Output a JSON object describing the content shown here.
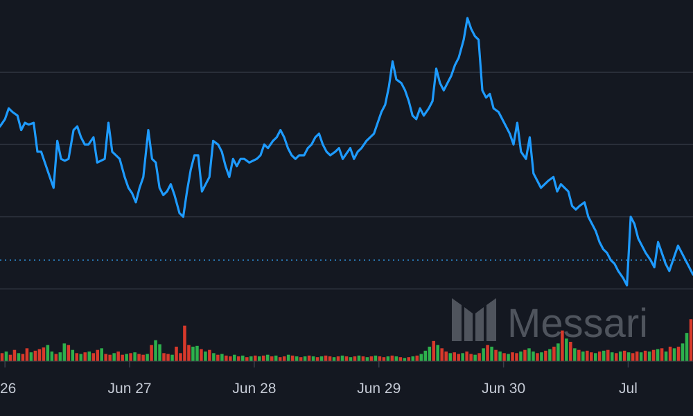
{
  "chart_data": {
    "type": "line",
    "x_ticks": [
      {
        "label": "26",
        "day": 0
      },
      {
        "label": "Jun 27",
        "day": 1
      },
      {
        "label": "Jun 28",
        "day": 2
      },
      {
        "label": "Jun 29",
        "day": 3
      },
      {
        "label": "Jun 30",
        "day": 4
      },
      {
        "label": "Jul",
        "day": 5
      }
    ],
    "xlim": [
      -0.04,
      5.52
    ],
    "ylim": [
      0,
      100
    ],
    "grid": true,
    "reference_line": 28,
    "series": [
      {
        "type": "line",
        "color": "#1e9bff",
        "values": [
          [
            -0.04,
            65
          ],
          [
            0.0,
            67
          ],
          [
            0.03,
            70
          ],
          [
            0.06,
            69
          ],
          [
            0.1,
            68
          ],
          [
            0.13,
            64
          ],
          [
            0.16,
            66
          ],
          [
            0.19,
            65.5
          ],
          [
            0.23,
            66
          ],
          [
            0.26,
            58
          ],
          [
            0.29,
            58
          ],
          [
            0.32,
            55
          ],
          [
            0.35,
            52
          ],
          [
            0.39,
            48
          ],
          [
            0.42,
            61
          ],
          [
            0.45,
            56
          ],
          [
            0.48,
            55.5
          ],
          [
            0.51,
            56
          ],
          [
            0.55,
            64
          ],
          [
            0.58,
            65
          ],
          [
            0.61,
            62
          ],
          [
            0.64,
            60
          ],
          [
            0.67,
            60
          ],
          [
            0.71,
            62
          ],
          [
            0.74,
            55
          ],
          [
            0.77,
            55.5
          ],
          [
            0.8,
            56
          ],
          [
            0.83,
            66
          ],
          [
            0.86,
            58
          ],
          [
            0.89,
            57
          ],
          [
            0.92,
            56
          ],
          [
            0.96,
            51
          ],
          [
            0.99,
            48
          ],
          [
            1.02,
            46.5
          ],
          [
            1.05,
            44
          ],
          [
            1.08,
            48
          ],
          [
            1.11,
            51
          ],
          [
            1.15,
            64
          ],
          [
            1.18,
            56
          ],
          [
            1.21,
            55
          ],
          [
            1.24,
            48
          ],
          [
            1.27,
            46
          ],
          [
            1.3,
            47
          ],
          [
            1.33,
            49
          ],
          [
            1.36,
            46
          ],
          [
            1.4,
            41
          ],
          [
            1.43,
            40
          ],
          [
            1.46,
            47
          ],
          [
            1.49,
            53
          ],
          [
            1.52,
            57
          ],
          [
            1.55,
            57
          ],
          [
            1.58,
            47
          ],
          [
            1.61,
            49
          ],
          [
            1.64,
            51
          ],
          [
            1.67,
            61
          ],
          [
            1.71,
            60
          ],
          [
            1.74,
            58
          ],
          [
            1.77,
            54
          ],
          [
            1.8,
            51
          ],
          [
            1.83,
            56
          ],
          [
            1.86,
            54
          ],
          [
            1.89,
            56
          ],
          [
            1.92,
            56
          ],
          [
            1.96,
            55
          ],
          [
            1.99,
            55.5
          ],
          [
            2.02,
            56
          ],
          [
            2.05,
            57
          ],
          [
            2.08,
            60
          ],
          [
            2.11,
            59
          ],
          [
            2.15,
            61
          ],
          [
            2.18,
            62
          ],
          [
            2.21,
            64
          ],
          [
            2.24,
            62
          ],
          [
            2.27,
            59
          ],
          [
            2.3,
            57
          ],
          [
            2.33,
            56
          ],
          [
            2.36,
            57
          ],
          [
            2.4,
            57
          ],
          [
            2.43,
            59
          ],
          [
            2.46,
            60
          ],
          [
            2.49,
            62
          ],
          [
            2.52,
            63
          ],
          [
            2.55,
            60
          ],
          [
            2.58,
            58
          ],
          [
            2.61,
            57
          ],
          [
            2.65,
            58
          ],
          [
            2.68,
            59
          ],
          [
            2.71,
            56
          ],
          [
            2.74,
            57.5
          ],
          [
            2.77,
            59
          ],
          [
            2.8,
            56
          ],
          [
            2.83,
            58
          ],
          [
            2.86,
            59
          ],
          [
            2.9,
            61
          ],
          [
            2.93,
            62
          ],
          [
            2.96,
            63
          ],
          [
            2.99,
            66
          ],
          [
            3.02,
            69
          ],
          [
            3.05,
            71
          ],
          [
            3.08,
            76
          ],
          [
            3.11,
            83
          ],
          [
            3.14,
            78
          ],
          [
            3.18,
            77
          ],
          [
            3.21,
            75
          ],
          [
            3.24,
            72
          ],
          [
            3.27,
            68
          ],
          [
            3.3,
            67
          ],
          [
            3.33,
            70
          ],
          [
            3.36,
            68
          ],
          [
            3.4,
            70
          ],
          [
            3.43,
            72
          ],
          [
            3.46,
            81
          ],
          [
            3.49,
            77
          ],
          [
            3.52,
            75
          ],
          [
            3.55,
            77
          ],
          [
            3.58,
            79
          ],
          [
            3.61,
            82
          ],
          [
            3.64,
            84
          ],
          [
            3.68,
            89
          ],
          [
            3.71,
            95
          ],
          [
            3.74,
            92
          ],
          [
            3.77,
            90
          ],
          [
            3.8,
            89
          ],
          [
            3.83,
            75
          ],
          [
            3.86,
            73
          ],
          [
            3.89,
            74
          ],
          [
            3.92,
            70
          ],
          [
            3.96,
            69
          ],
          [
            3.99,
            67
          ],
          [
            4.02,
            65
          ],
          [
            4.05,
            63
          ],
          [
            4.08,
            60
          ],
          [
            4.11,
            66
          ],
          [
            4.14,
            58
          ],
          [
            4.18,
            56
          ],
          [
            4.21,
            62
          ],
          [
            4.24,
            52
          ],
          [
            4.27,
            50
          ],
          [
            4.3,
            48
          ],
          [
            4.33,
            49
          ],
          [
            4.36,
            50
          ],
          [
            4.4,
            51
          ],
          [
            4.43,
            47
          ],
          [
            4.46,
            49
          ],
          [
            4.49,
            48
          ],
          [
            4.52,
            47
          ],
          [
            4.55,
            43
          ],
          [
            4.58,
            42
          ],
          [
            4.61,
            43
          ],
          [
            4.65,
            44
          ],
          [
            4.68,
            40
          ],
          [
            4.71,
            38
          ],
          [
            4.74,
            36
          ],
          [
            4.77,
            33
          ],
          [
            4.8,
            31
          ],
          [
            4.83,
            30
          ],
          [
            4.86,
            28
          ],
          [
            4.89,
            27
          ],
          [
            4.92,
            25
          ],
          [
            4.96,
            23
          ],
          [
            4.99,
            21
          ],
          [
            5.02,
            40
          ],
          [
            5.05,
            38
          ],
          [
            5.08,
            34
          ],
          [
            5.11,
            32
          ],
          [
            5.14,
            30
          ],
          [
            5.18,
            28
          ],
          [
            5.21,
            26
          ],
          [
            5.24,
            33
          ],
          [
            5.27,
            30
          ],
          [
            5.3,
            27
          ],
          [
            5.33,
            25
          ],
          [
            5.36,
            28
          ],
          [
            5.4,
            32
          ],
          [
            5.43,
            30
          ],
          [
            5.46,
            28
          ],
          [
            5.49,
            26
          ],
          [
            5.52,
            24
          ]
        ]
      }
    ],
    "volume": {
      "ylim": [
        0,
        60
      ],
      "up_color": "#2db04c",
      "down_color": "#d8392b",
      "bars": [
        [
          10,
          "down"
        ],
        [
          12,
          "up"
        ],
        [
          8,
          "down"
        ],
        [
          14,
          "down"
        ],
        [
          10,
          "up"
        ],
        [
          9,
          "down"
        ],
        [
          16,
          "down"
        ],
        [
          11,
          "up"
        ],
        [
          13,
          "down"
        ],
        [
          15,
          "down"
        ],
        [
          17,
          "down"
        ],
        [
          20,
          "up"
        ],
        [
          12,
          "up"
        ],
        [
          9,
          "down"
        ],
        [
          11,
          "up"
        ],
        [
          22,
          "up"
        ],
        [
          20,
          "down"
        ],
        [
          14,
          "up"
        ],
        [
          10,
          "down"
        ],
        [
          9,
          "up"
        ],
        [
          11,
          "down"
        ],
        [
          12,
          "up"
        ],
        [
          10,
          "down"
        ],
        [
          14,
          "down"
        ],
        [
          16,
          "up"
        ],
        [
          9,
          "down"
        ],
        [
          8,
          "down"
        ],
        [
          10,
          "up"
        ],
        [
          12,
          "down"
        ],
        [
          8,
          "down"
        ],
        [
          9,
          "up"
        ],
        [
          10,
          "down"
        ],
        [
          11,
          "up"
        ],
        [
          9,
          "down"
        ],
        [
          8,
          "down"
        ],
        [
          9,
          "up"
        ],
        [
          20,
          "down"
        ],
        [
          26,
          "up"
        ],
        [
          21,
          "up"
        ],
        [
          10,
          "down"
        ],
        [
          9,
          "down"
        ],
        [
          8,
          "up"
        ],
        [
          18,
          "down"
        ],
        [
          10,
          "down"
        ],
        [
          44,
          "down"
        ],
        [
          20,
          "down"
        ],
        [
          18,
          "up"
        ],
        [
          19,
          "up"
        ],
        [
          15,
          "down"
        ],
        [
          12,
          "up"
        ],
        [
          14,
          "down"
        ],
        [
          10,
          "up"
        ],
        [
          8,
          "down"
        ],
        [
          9,
          "up"
        ],
        [
          7,
          "down"
        ],
        [
          6,
          "down"
        ],
        [
          8,
          "up"
        ],
        [
          6,
          "down"
        ],
        [
          7,
          "up"
        ],
        [
          5,
          "down"
        ],
        [
          6,
          "up"
        ],
        [
          7,
          "down"
        ],
        [
          6,
          "up"
        ],
        [
          7,
          "down"
        ],
        [
          8,
          "up"
        ],
        [
          6,
          "down"
        ],
        [
          7,
          "up"
        ],
        [
          5,
          "down"
        ],
        [
          6,
          "down"
        ],
        [
          8,
          "up"
        ],
        [
          7,
          "down"
        ],
        [
          6,
          "up"
        ],
        [
          5,
          "down"
        ],
        [
          6,
          "up"
        ],
        [
          7,
          "down"
        ],
        [
          6,
          "up"
        ],
        [
          5,
          "down"
        ],
        [
          6,
          "up"
        ],
        [
          7,
          "down"
        ],
        [
          6,
          "down"
        ],
        [
          5,
          "up"
        ],
        [
          6,
          "down"
        ],
        [
          7,
          "up"
        ],
        [
          6,
          "down"
        ],
        [
          5,
          "up"
        ],
        [
          6,
          "down"
        ],
        [
          7,
          "up"
        ],
        [
          6,
          "down"
        ],
        [
          5,
          "up"
        ],
        [
          6,
          "down"
        ],
        [
          7,
          "up"
        ],
        [
          6,
          "down"
        ],
        [
          5,
          "down"
        ],
        [
          6,
          "up"
        ],
        [
          7,
          "down"
        ],
        [
          6,
          "up"
        ],
        [
          5,
          "down"
        ],
        [
          4,
          "up"
        ],
        [
          5,
          "down"
        ],
        [
          6,
          "up"
        ],
        [
          7,
          "down"
        ],
        [
          9,
          "up"
        ],
        [
          13,
          "up"
        ],
        [
          18,
          "up"
        ],
        [
          25,
          "down"
        ],
        [
          20,
          "up"
        ],
        [
          16,
          "down"
        ],
        [
          12,
          "down"
        ],
        [
          10,
          "up"
        ],
        [
          11,
          "down"
        ],
        [
          9,
          "down"
        ],
        [
          10,
          "up"
        ],
        [
          12,
          "down"
        ],
        [
          9,
          "down"
        ],
        [
          8,
          "up"
        ],
        [
          10,
          "down"
        ],
        [
          16,
          "up"
        ],
        [
          20,
          "down"
        ],
        [
          18,
          "up"
        ],
        [
          14,
          "down"
        ],
        [
          12,
          "up"
        ],
        [
          10,
          "down"
        ],
        [
          9,
          "up"
        ],
        [
          11,
          "down"
        ],
        [
          10,
          "down"
        ],
        [
          12,
          "up"
        ],
        [
          14,
          "down"
        ],
        [
          16,
          "up"
        ],
        [
          12,
          "up"
        ],
        [
          10,
          "down"
        ],
        [
          11,
          "up"
        ],
        [
          13,
          "down"
        ],
        [
          15,
          "up"
        ],
        [
          18,
          "down"
        ],
        [
          22,
          "up"
        ],
        [
          38,
          "down"
        ],
        [
          28,
          "up"
        ],
        [
          24,
          "down"
        ],
        [
          16,
          "up"
        ],
        [
          14,
          "down"
        ],
        [
          12,
          "up"
        ],
        [
          13,
          "down"
        ],
        [
          11,
          "down"
        ],
        [
          10,
          "up"
        ],
        [
          12,
          "down"
        ],
        [
          13,
          "up"
        ],
        [
          14,
          "down"
        ],
        [
          11,
          "up"
        ],
        [
          10,
          "down"
        ],
        [
          12,
          "up"
        ],
        [
          13,
          "down"
        ],
        [
          11,
          "up"
        ],
        [
          10,
          "down"
        ],
        [
          12,
          "down"
        ],
        [
          11,
          "up"
        ],
        [
          13,
          "down"
        ],
        [
          12,
          "up"
        ],
        [
          14,
          "down"
        ],
        [
          15,
          "up"
        ],
        [
          16,
          "down"
        ],
        [
          12,
          "up"
        ],
        [
          18,
          "down"
        ],
        [
          16,
          "up"
        ],
        [
          18,
          "down"
        ],
        [
          22,
          "up"
        ],
        [
          35,
          "up"
        ],
        [
          52,
          "down"
        ]
      ]
    },
    "watermark": "Messari"
  }
}
